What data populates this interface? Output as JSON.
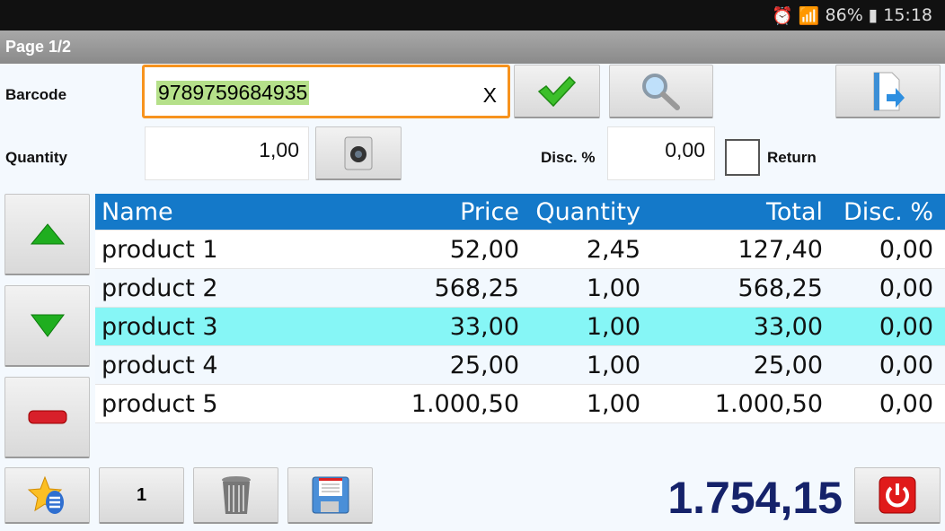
{
  "status": {
    "battery": "86%",
    "time": "15:18"
  },
  "title": "Page 1/2",
  "form": {
    "barcode_label": "Barcode",
    "barcode_value": "9789759684935",
    "clear_label": "X",
    "quantity_label": "Quantity",
    "quantity_value": "1,00",
    "disc_label": "Disc. %",
    "disc_value": "0,00",
    "return_label": "Return",
    "return_checked": false
  },
  "table": {
    "headers": [
      "Name",
      "Price",
      "Quantity",
      "Total",
      "Disc. %"
    ],
    "rows": [
      [
        "product 1",
        "52,00",
        "2,45",
        "127,40",
        "0,00"
      ],
      [
        "product 2",
        "568,25",
        "1,00",
        "568,25",
        "0,00"
      ],
      [
        "product 3",
        "33,00",
        "1,00",
        "33,00",
        "0,00"
      ],
      [
        "product 4",
        "25,00",
        "1,00",
        "25,00",
        "0,00"
      ],
      [
        "product 5",
        "1.000,50",
        "1,00",
        "1.000,50",
        "0,00"
      ]
    ],
    "selected_row": 2,
    "colors": {
      "header": "#1479c9",
      "selected": "#86f6f6",
      "alt": "#f2f8fe"
    }
  },
  "footer": {
    "page_button": "1",
    "total": "1.754,15"
  }
}
